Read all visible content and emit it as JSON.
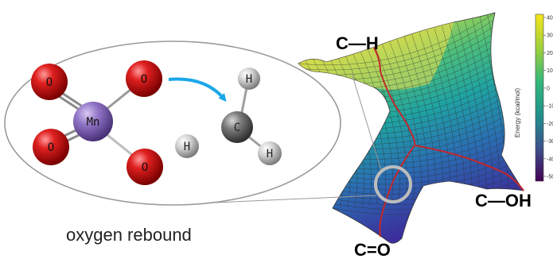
{
  "atoms": {
    "metal": "Mn",
    "oxygen": "O",
    "carbon": "C",
    "hydrogen": "H"
  },
  "surface_labels": {
    "top_left": "C—H",
    "right": "C—OH",
    "bottom": "C=O"
  },
  "caption": "oxygen rebound",
  "colorbar": {
    "title": "Energy (kcal/mol)",
    "ticks": [
      "40",
      "30",
      "20",
      "10",
      "0",
      "-10",
      "-20",
      "-30",
      "-40",
      "-50"
    ]
  },
  "colors": {
    "oxygen": "#d81b1b",
    "manganese": "#8e6cc2",
    "carbon": "#6e6e6e",
    "hydrogen": "#cfcfcf",
    "arrow": "#1aa7e8",
    "path": "#c0272d",
    "highlight": "#bdbdbd"
  }
}
